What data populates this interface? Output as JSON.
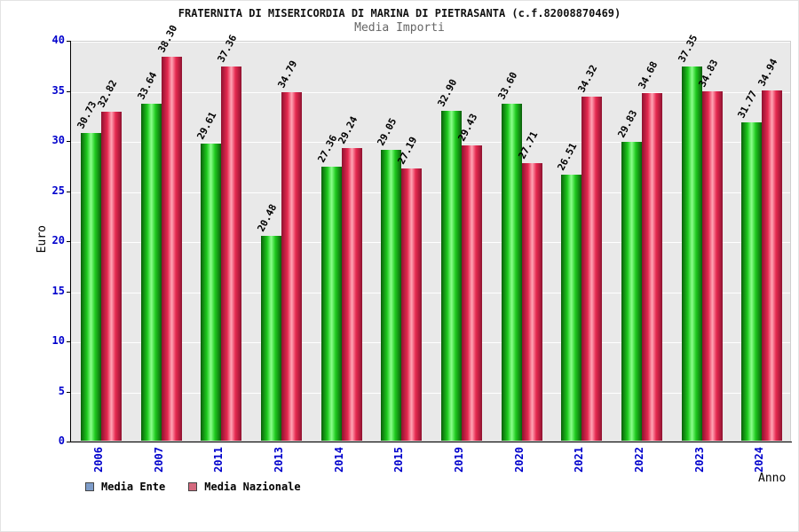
{
  "chart_data": {
    "type": "bar",
    "title": "FRATERNITA DI MISERICORDIA DI MARINA DI PIETRASANTA (c.f.82008870469)",
    "subtitle": "Media Importi",
    "xlabel": "Anno",
    "ylabel": "Euro",
    "ylim": [
      0,
      40
    ],
    "yticks": [
      0,
      5,
      10,
      15,
      20,
      25,
      30,
      35,
      40
    ],
    "grid": true,
    "legend_position": "bottom-left",
    "categories": [
      "2006",
      "2007",
      "2011",
      "2013",
      "2014",
      "2015",
      "2019",
      "2020",
      "2021",
      "2022",
      "2023",
      "2024"
    ],
    "series": [
      {
        "name": "Media Ente",
        "values": [
          30.73,
          33.64,
          29.61,
          20.48,
          27.36,
          29.05,
          32.9,
          33.6,
          26.51,
          29.83,
          37.35,
          31.77
        ],
        "labels": [
          "30.73",
          "33.64",
          "29.61",
          "20.48",
          "27.36",
          "29.05",
          "32.90",
          "33.60",
          "26.51",
          "29.83",
          "37.35",
          "31.77"
        ],
        "gradient": {
          "edge": "#0b5e0b",
          "mid": "#1ec91e",
          "center": "#8cff8c"
        },
        "swatch": "#7d9cc9"
      },
      {
        "name": "Media Nazionale",
        "values": [
          32.82,
          38.3,
          37.36,
          34.79,
          29.24,
          27.19,
          29.43,
          27.71,
          34.32,
          34.68,
          34.83,
          34.94
        ],
        "labels": [
          "32.82",
          "38.30",
          "37.36",
          "34.79",
          "29.24",
          "27.19",
          "29.43",
          "27.71",
          "34.32",
          "34.68",
          "34.83",
          "34.94"
        ],
        "gradient": {
          "edge": "#8e1230",
          "mid": "#e62a50",
          "center": "#ffa6b6"
        },
        "swatch": "#d4697e"
      }
    ],
    "colors": {
      "plot_bg": "#e9e9e9",
      "gridline": "#ffffff",
      "tick_label": "#0000cc",
      "axis": "#000000"
    }
  }
}
